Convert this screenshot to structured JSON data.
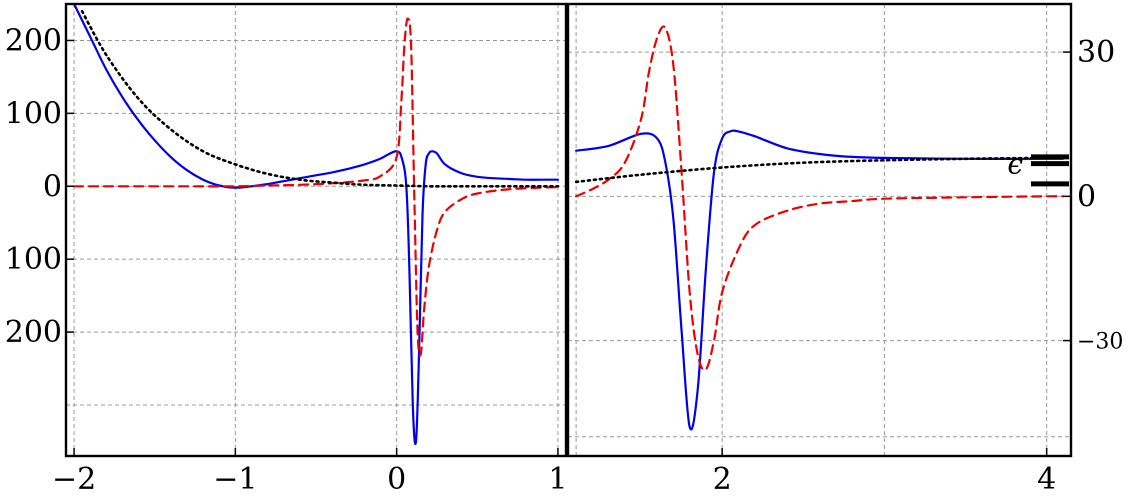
{
  "chart_data": [
    {
      "type": "line",
      "panel": "left",
      "title": "",
      "xlabel": "",
      "ylabel": "",
      "xlim": [
        -2.05,
        1.05
      ],
      "ylim": [
        -370,
        250
      ],
      "grid": true,
      "x_ticks": [
        {
          "value": -2,
          "label": "−2"
        },
        {
          "value": -1,
          "label": "−1"
        },
        {
          "value": 0,
          "label": "0"
        },
        {
          "value": 1,
          "label": "1"
        }
      ],
      "y_ticks": [
        {
          "value": 200,
          "label": "200"
        },
        {
          "value": 100,
          "label": "100"
        },
        {
          "value": 0,
          "label": "0"
        },
        {
          "value": -100,
          "label": "100"
        },
        {
          "value": -200,
          "label": "200"
        }
      ],
      "extra_y_gridlines": [
        -300
      ],
      "series": [
        {
          "style": "solid",
          "color": "#0000ee",
          "x": [
            -2.0,
            -1.9,
            -1.8,
            -1.7,
            -1.6,
            -1.5,
            -1.4,
            -1.3,
            -1.2,
            -1.1,
            -1.0,
            -0.9,
            -0.8,
            -0.7,
            -0.6,
            -0.5,
            -0.4,
            -0.3,
            -0.2,
            -0.1,
            -0.05,
            0.0,
            0.03,
            0.06,
            0.08,
            0.1,
            0.12,
            0.14,
            0.16,
            0.18,
            0.2,
            0.22,
            0.25,
            0.3,
            0.4,
            0.5,
            0.6,
            0.7,
            0.8,
            0.9,
            1.0
          ],
          "y": [
            250,
            205,
            160,
            122,
            90,
            63,
            40,
            22,
            9,
            1,
            -2,
            0,
            3,
            7,
            11,
            15,
            19,
            24,
            30,
            38,
            44,
            48,
            40,
            0,
            -120,
            -300,
            -350,
            -220,
            -40,
            30,
            45,
            48,
            45,
            30,
            18,
            13,
            11,
            10,
            9,
            9,
            9
          ]
        },
        {
          "style": "dashed",
          "color": "#ee0000",
          "x": [
            -2.0,
            -1.5,
            -1.0,
            -0.8,
            -0.6,
            -0.4,
            -0.2,
            -0.1,
            0.0,
            0.03,
            0.05,
            0.07,
            0.09,
            0.11,
            0.13,
            0.15,
            0.17,
            0.2,
            0.25,
            0.3,
            0.4,
            0.5,
            0.7,
            1.0
          ],
          "y": [
            0,
            0,
            0,
            1,
            2,
            4,
            8,
            14,
            40,
            120,
            200,
            230,
            190,
            -20,
            -200,
            -230,
            -170,
            -110,
            -60,
            -35,
            -18,
            -10,
            -4,
            -1
          ]
        },
        {
          "style": "dotted",
          "color": "#000000",
          "x": [
            -1.95,
            -1.8,
            -1.6,
            -1.4,
            -1.2,
            -1.0,
            -0.8,
            -0.6,
            -0.4,
            -0.2,
            0.0,
            0.2,
            0.4,
            0.6,
            0.8,
            1.0
          ],
          "y": [
            240,
            180,
            120,
            78,
            48,
            30,
            17,
            9,
            5,
            2,
            1,
            0,
            0,
            0,
            0,
            0
          ]
        }
      ]
    },
    {
      "type": "line",
      "panel": "right",
      "title": "",
      "xlabel": "",
      "ylabel": "",
      "xlim": [
        1.05,
        4.15
      ],
      "ylim": [
        -54,
        40
      ],
      "grid": true,
      "x_ticks": [
        {
          "value": 2,
          "label": "2"
        },
        {
          "value": 4,
          "label": "4"
        }
      ],
      "y_ticks": [
        {
          "value": 30,
          "label": "30"
        },
        {
          "value": 0,
          "label": "0"
        },
        {
          "value": -30,
          "label": "−30"
        }
      ],
      "extra_x_gridlines": [
        1.1,
        3.0
      ],
      "extra_y_gridlines": [
        -50
      ],
      "series": [
        {
          "style": "solid",
          "color": "#0000ee",
          "x": [
            1.1,
            1.3,
            1.5,
            1.6,
            1.65,
            1.7,
            1.75,
            1.8,
            1.85,
            1.9,
            1.95,
            2.0,
            2.05,
            2.1,
            2.2,
            2.4,
            2.6,
            2.8,
            3.0,
            3.5,
            4.0,
            4.1
          ],
          "y": [
            9.5,
            10.5,
            13,
            12,
            7,
            -5,
            -28,
            -48,
            -40,
            -15,
            5,
            12,
            13.5,
            13.5,
            12.5,
            10,
            8.8,
            8.2,
            8,
            7.8,
            7.8,
            7.8
          ]
        },
        {
          "style": "dashed",
          "color": "#ee0000",
          "x": [
            1.1,
            1.2,
            1.3,
            1.4,
            1.5,
            1.55,
            1.6,
            1.65,
            1.7,
            1.75,
            1.8,
            1.85,
            1.9,
            1.95,
            2.0,
            2.1,
            2.2,
            2.4,
            2.6,
            2.8,
            3.0,
            3.5,
            4.0,
            4.1
          ],
          "y": [
            0,
            1.5,
            3.5,
            7,
            16,
            26,
            33,
            35,
            27,
            5,
            -20,
            -33,
            -36,
            -30,
            -20,
            -11,
            -6,
            -3,
            -1.5,
            -1,
            -0.5,
            -0.2,
            0,
            0
          ]
        },
        {
          "style": "dotted",
          "color": "#000000",
          "x": [
            1.1,
            1.5,
            2.0,
            2.5,
            3.0,
            3.5,
            4.0,
            4.1
          ],
          "y": [
            3,
            4.5,
            6,
            7,
            7.5,
            7.8,
            8,
            8
          ]
        }
      ],
      "markers": [
        {
          "y": 8.2,
          "label": ""
        },
        {
          "y": 6.8,
          "label": "ϵ"
        },
        {
          "y": 2.6,
          "label": ""
        }
      ]
    }
  ]
}
